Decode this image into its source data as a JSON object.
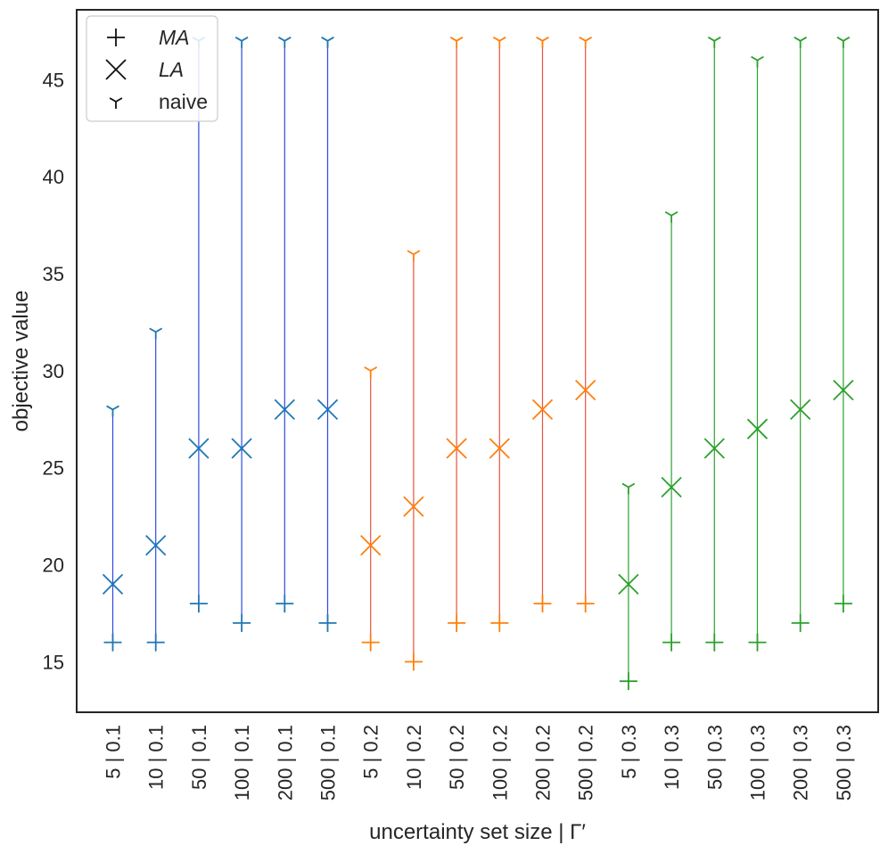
{
  "chart_data": {
    "type": "scatter",
    "xlabel": "uncertainty set size | Γ′",
    "ylabel": "objective value",
    "ylim": [
      12.4,
      48.6
    ],
    "yticks": [
      15,
      20,
      25,
      30,
      35,
      40,
      45
    ],
    "categories": [
      "5 | 0.1",
      "10 | 0.1",
      "50 | 0.1",
      "100 | 0.1",
      "200 | 0.1",
      "500 | 0.1",
      "5 | 0.2",
      "10 | 0.2",
      "50 | 0.2",
      "100 | 0.2",
      "200 | 0.2",
      "500 | 0.2",
      "5 | 0.3",
      "10 | 0.3",
      "50 | 0.3",
      "100 | 0.3",
      "200 | 0.3",
      "500 | 0.3"
    ],
    "groups": [
      {
        "gamma": "0.1",
        "marker_color": "#1f77b4",
        "line_color": "#2b4be0",
        "start": 0
      },
      {
        "gamma": "0.2",
        "marker_color": "#ff7f0e",
        "line_color": "#e8533c",
        "start": 6
      },
      {
        "gamma": "0.3",
        "marker_color": "#2ca02c",
        "line_color": "#2ca02c",
        "start": 12
      }
    ],
    "series": [
      {
        "name": "MA",
        "marker": "plus",
        "values": [
          16,
          16,
          18,
          17,
          18,
          17,
          16,
          15,
          17,
          17,
          18,
          18,
          14,
          16,
          16,
          16,
          17,
          18
        ]
      },
      {
        "name": "LA",
        "marker": "x",
        "values": [
          19,
          21,
          26,
          26,
          28,
          28,
          21,
          23,
          26,
          26,
          28,
          29,
          19,
          24,
          26,
          27,
          28,
          29
        ]
      },
      {
        "name": "naive",
        "marker": "tri",
        "values": [
          28,
          32,
          47,
          47,
          47,
          47,
          30,
          36,
          47,
          47,
          47,
          47,
          24,
          38,
          47,
          46,
          47,
          47
        ]
      }
    ],
    "legend": {
      "placement": "top-left",
      "entries": [
        {
          "label": "MA",
          "marker": "plus",
          "italic": true
        },
        {
          "label": "LA",
          "marker": "x",
          "italic": true
        },
        {
          "label": "naive",
          "marker": "tri",
          "italic": false
        }
      ]
    }
  }
}
